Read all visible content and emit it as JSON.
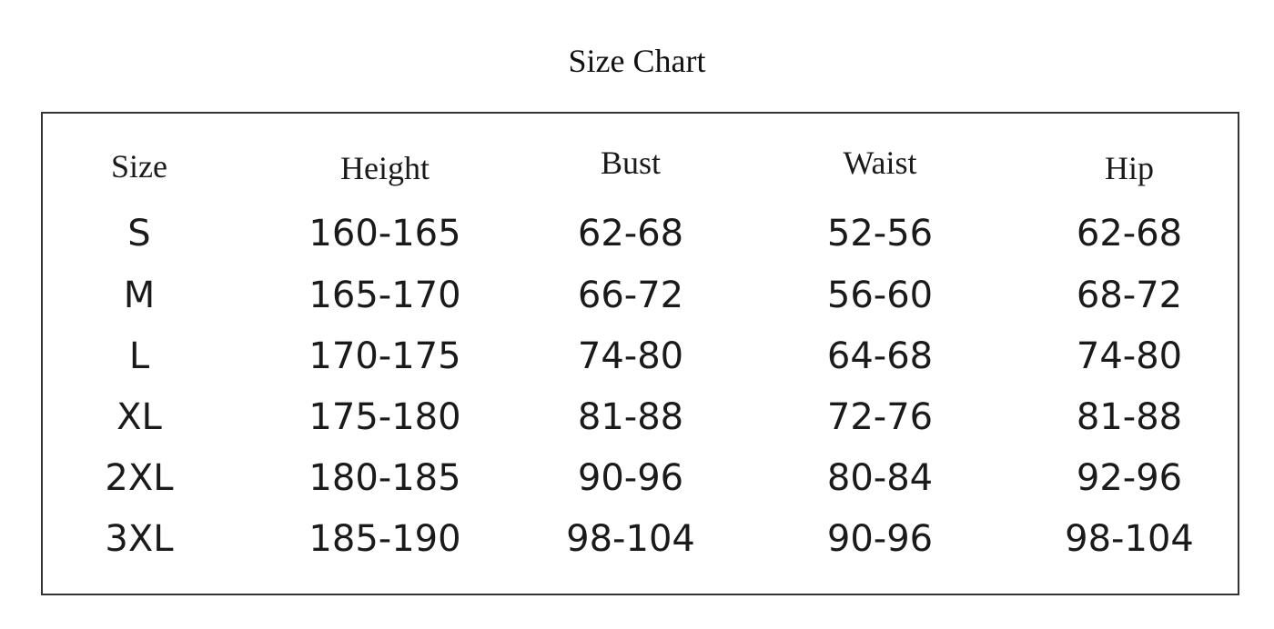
{
  "title": "Size Chart",
  "table": {
    "header": [
      "Size",
      "Height",
      "Bust",
      "Waist",
      "Hip"
    ],
    "rows": [
      [
        "S",
        "160-165",
        "62-68",
        "52-56",
        "62-68"
      ],
      [
        "M",
        "165-170",
        "66-72",
        "56-60",
        "68-72"
      ],
      [
        "L",
        "170-175",
        "74-80",
        "64-68",
        "74-80"
      ],
      [
        "XL",
        "175-180",
        "81-88",
        "72-76",
        "81-88"
      ],
      [
        "2XL",
        "180-185",
        "90-96",
        "80-84",
        "92-96"
      ],
      [
        "3XL",
        "185-190",
        "98-104",
        "90-96",
        "98-104"
      ]
    ]
  }
}
